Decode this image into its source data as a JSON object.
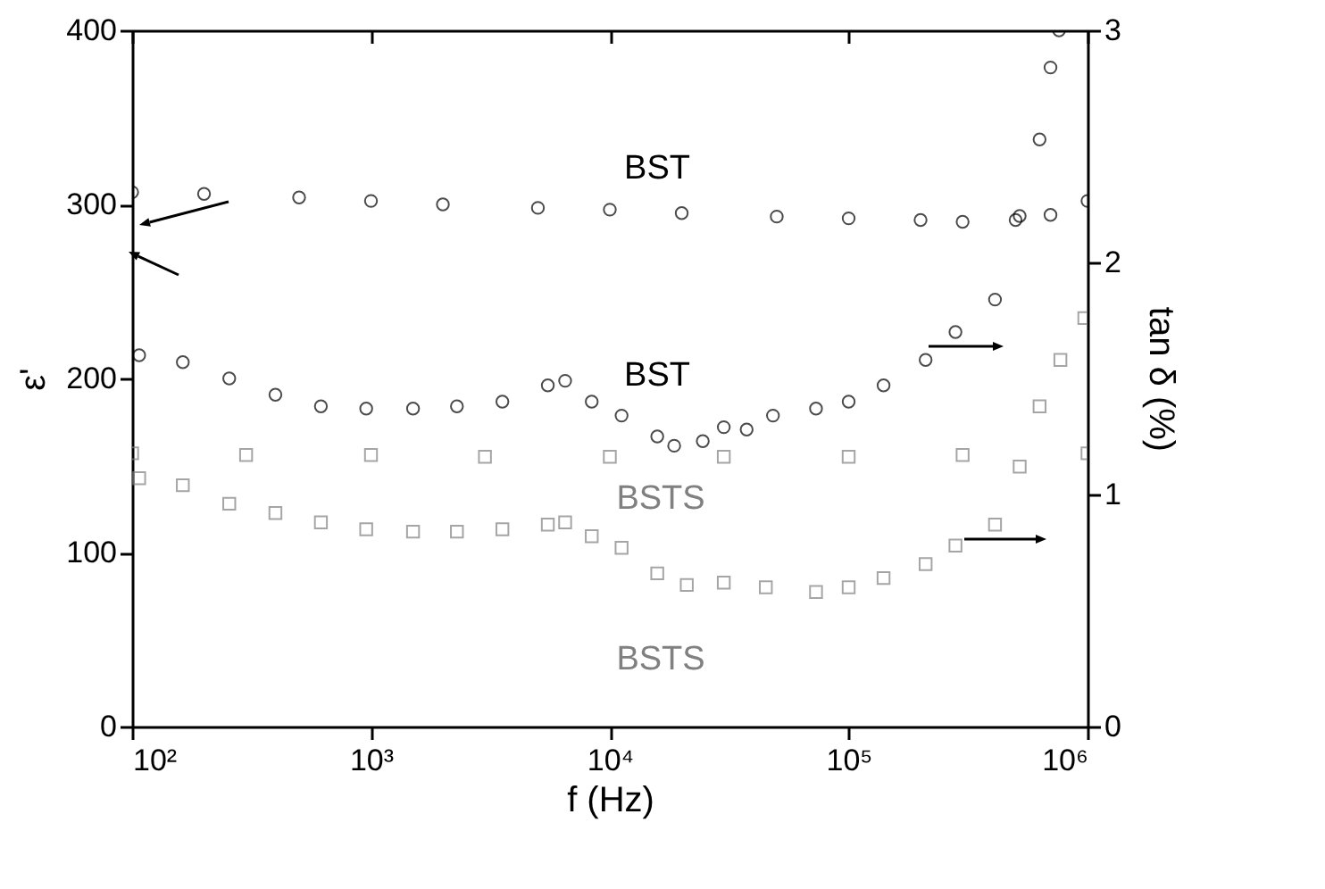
{
  "chart_data": {
    "type": "scatter",
    "xlabel": "f (Hz)",
    "ylabel": "ε'",
    "y2label": "tan δ (%)",
    "log": "x",
    "xlim": [
      100,
      1000000
    ],
    "xticks": [
      {
        "value": 100,
        "label": "10²"
      },
      {
        "value": 1000,
        "label": "10³"
      },
      {
        "value": 10000,
        "label": "10⁴"
      },
      {
        "value": 100000,
        "label": "10⁵"
      },
      {
        "value": 1000000,
        "label": "10⁶"
      }
    ],
    "ylim": [
      0,
      400
    ],
    "yticks": [
      0,
      100,
      200,
      300,
      400
    ],
    "y2lim": [
      0,
      3
    ],
    "y2ticks": [
      0,
      1,
      2,
      3
    ],
    "grid": false,
    "series": [
      {
        "color": "#000000",
        "marker": "circle",
        "x": [
          100,
          200,
          500,
          1000,
          2000,
          5000,
          10000,
          20000,
          50000,
          100000,
          200000,
          300000,
          500000,
          700000,
          1000000
        ],
        "values": [
          307,
          306,
          304,
          302,
          300,
          298,
          297,
          295,
          293,
          292,
          291,
          290,
          291,
          294,
          302
        ]
      },
      {
        "color": "#000000",
        "marker": "circle",
        "axis": "y2",
        "x": [
          107,
          163,
          255,
          398,
          617,
          955,
          1500,
          2290,
          3550,
          5500,
          6500,
          8400,
          11200,
          15800,
          18600,
          24500,
          30000,
          37400,
          48200,
          73000,
          100000,
          140000,
          210000,
          280000,
          410000,
          520000,
          630000,
          700000,
          760000
        ],
        "values": [
          1.6,
          1.57,
          1.5,
          1.43,
          1.38,
          1.37,
          1.37,
          1.38,
          1.4,
          1.47,
          1.49,
          1.4,
          1.34,
          1.25,
          1.21,
          1.23,
          1.29,
          1.28,
          1.34,
          1.37,
          1.4,
          1.47,
          1.58,
          1.7,
          1.84,
          2.2,
          2.53,
          2.84,
          3.0
        ]
      },
      {
        "color": "#808080",
        "marker": "square",
        "x": [
          100,
          300,
          1000,
          3000,
          10000,
          30000,
          100000,
          300000,
          1000000
        ],
        "values": [
          157,
          156,
          156,
          155,
          155,
          155,
          155,
          156,
          157
        ]
      },
      {
        "color": "#808080",
        "marker": "square",
        "axis": "y2",
        "x": [
          107,
          163,
          255,
          398,
          617,
          955,
          1500,
          2290,
          3550,
          5500,
          6500,
          8400,
          11200,
          15800,
          21000,
          30000,
          45000,
          73000,
          100000,
          140000,
          210000,
          280000,
          410000,
          520000,
          630000,
          770000,
          970000
        ],
        "values": [
          1.07,
          1.04,
          0.96,
          0.92,
          0.88,
          0.85,
          0.84,
          0.84,
          0.85,
          0.87,
          0.88,
          0.82,
          0.77,
          0.66,
          0.61,
          0.62,
          0.6,
          0.58,
          0.6,
          0.64,
          0.7,
          0.78,
          0.87,
          1.12,
          1.38,
          1.58,
          1.76
        ]
      }
    ],
    "annotations": [
      "BST",
      "BST",
      "BSTS",
      "BSTS"
    ]
  }
}
